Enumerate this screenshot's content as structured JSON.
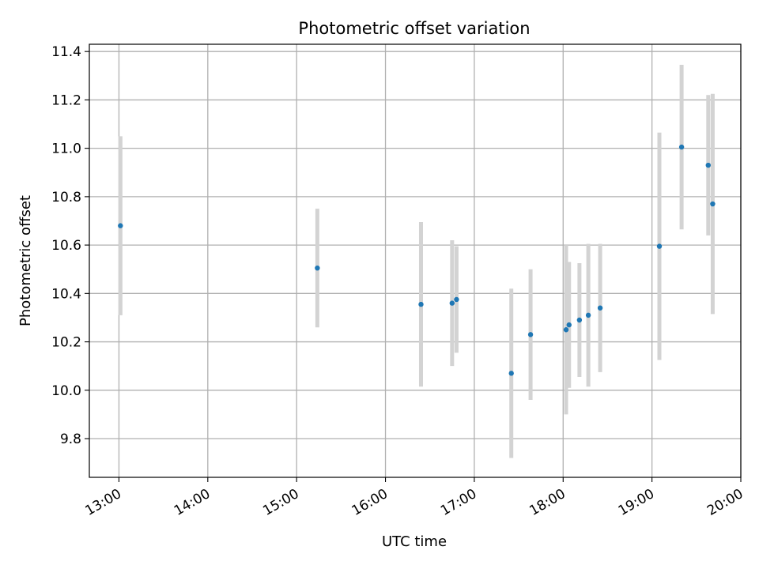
{
  "chart_data": {
    "type": "scatter",
    "title": "Photometric offset variation",
    "xlabel": "UTC time",
    "ylabel": "Photometric offset",
    "x_ticks": [
      "13:00",
      "14:00",
      "15:00",
      "16:00",
      "17:00",
      "18:00",
      "19:00",
      "20:00"
    ],
    "y_ticks": [
      "9.8",
      "10.0",
      "10.2",
      "10.4",
      "10.6",
      "10.8",
      "11.0",
      "11.2",
      "11.4"
    ],
    "xlim": [
      "12:40",
      "20:00"
    ],
    "ylim": [
      9.64,
      11.43
    ],
    "grid": true,
    "series": [
      {
        "style": "points with vertical error bars",
        "points": [
          {
            "x": "13:01",
            "y": 10.68,
            "err": 0.37
          },
          {
            "x": "15:14",
            "y": 10.505,
            "err": 0.245
          },
          {
            "x": "16:24",
            "y": 10.355,
            "err": 0.34
          },
          {
            "x": "16:45",
            "y": 10.36,
            "err": 0.26
          },
          {
            "x": "16:48",
            "y": 10.375,
            "err": 0.22
          },
          {
            "x": "17:25",
            "y": 10.07,
            "err": 0.35
          },
          {
            "x": "17:38",
            "y": 10.23,
            "err": 0.27
          },
          {
            "x": "18:02",
            "y": 10.25,
            "err": 0.35
          },
          {
            "x": "18:04",
            "y": 10.27,
            "err": 0.26
          },
          {
            "x": "18:11",
            "y": 10.29,
            "err": 0.235
          },
          {
            "x": "18:17",
            "y": 10.31,
            "err": 0.295
          },
          {
            "x": "18:25",
            "y": 10.34,
            "err": 0.265
          },
          {
            "x": "19:05",
            "y": 10.595,
            "err": 0.47
          },
          {
            "x": "19:20",
            "y": 11.005,
            "err": 0.34
          },
          {
            "x": "19:38",
            "y": 10.93,
            "err": 0.29
          },
          {
            "x": "19:41",
            "y": 10.77,
            "err": 0.455
          }
        ]
      }
    ],
    "colors": {
      "point": "#1f77b4",
      "errorbar": "#d3d3d3",
      "grid": "#b0b0b0",
      "axes": "#000000"
    }
  }
}
